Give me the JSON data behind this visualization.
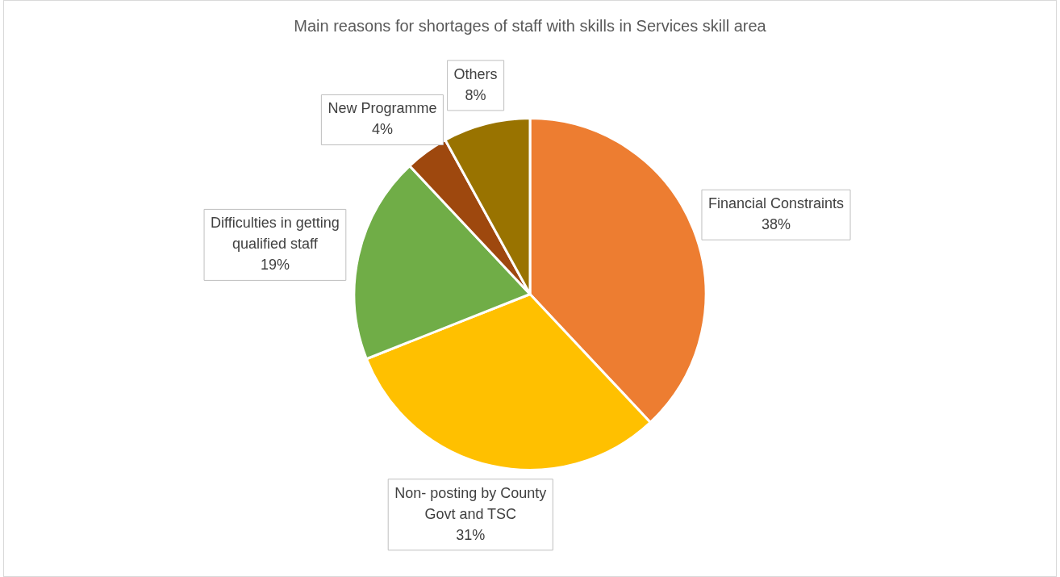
{
  "chart_data": {
    "type": "pie",
    "title": "Main reasons for shortages of staff with skills in Services skill area",
    "categories": [
      "Financial Constraints",
      "Non- posting by County Govt and TSC",
      "Difficulties in getting qualified staff",
      "New Programme",
      "Others"
    ],
    "values": [
      38,
      31,
      19,
      4,
      8
    ],
    "colors": [
      "#ed7d31",
      "#ffc000",
      "#70ad47",
      "#9e480e",
      "#997300"
    ],
    "value_labels": [
      "38%",
      "31%",
      "19%",
      "4%",
      "8%"
    ],
    "legend": false
  }
}
